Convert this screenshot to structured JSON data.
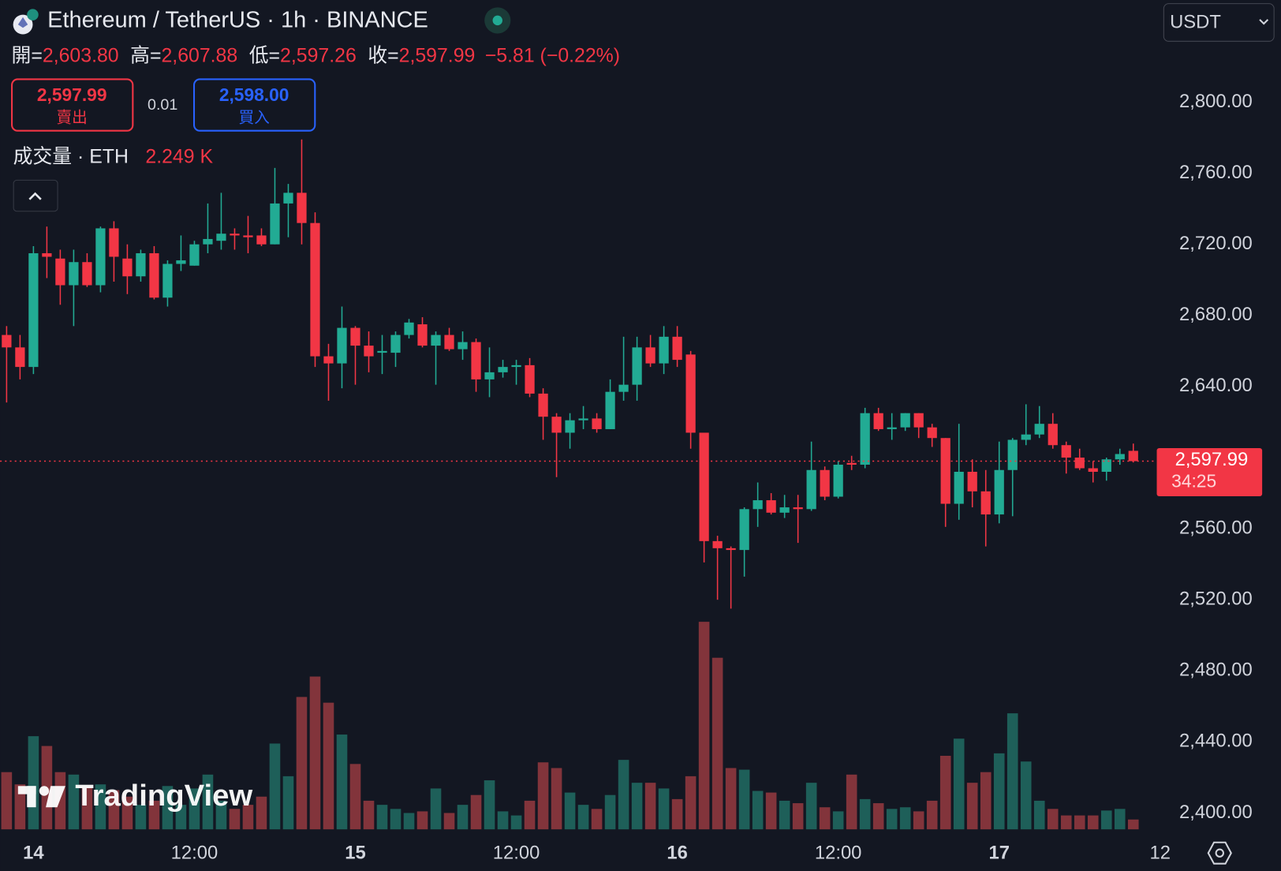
{
  "chart_data": {
    "type": "candlestick",
    "title": "Ethereum / TetherUS · 1h · BINANCE",
    "currency": "USDT",
    "ohlc": [
      {
        "label": "開=",
        "value": "2,603.80"
      },
      {
        "label": "高=",
        "value": "2,607.88"
      },
      {
        "label": "低=",
        "value": "2,597.26"
      },
      {
        "label": "收=",
        "value": "2,597.99"
      }
    ],
    "change": "−5.81 (−0.22%)",
    "sell_price": "2,597.99",
    "sell_label": "賣出",
    "spread": "0.01",
    "buy_price": "2,598.00",
    "buy_label": "買入",
    "volume_title": "成交量 · ETH",
    "volume_readout": "2.249 K",
    "last_price_label": "2,597.99",
    "countdown": "34:25",
    "watermark": "TradingView",
    "up_color": "#22ab94",
    "down_color": "#f23645",
    "volume_up_color": "#1e5f59",
    "volume_down_color": "#82343b",
    "open": [
      2669,
      2662,
      2651,
      2715,
      2712,
      2697,
      2710,
      2697,
      2729,
      2712,
      2702,
      2715,
      2690,
      2709,
      2708,
      2720,
      2722,
      2726,
      2725,
      2725,
      2720,
      2743,
      2749,
      2732,
      2657,
      2653,
      2673,
      2663,
      2659,
      2659,
      2669,
      2675,
      2663,
      2669,
      2661,
      2665,
      2644,
      2648,
      2651,
      2652,
      2636,
      2623,
      2614,
      2621,
      2622,
      2616,
      2637,
      2641,
      2662,
      2653,
      2668,
      2658,
      2614,
      2553,
      2549,
      2548,
      2571,
      2576,
      2569,
      2572,
      2571,
      2593,
      2578,
      2597,
      2596,
      2625,
      2616,
      2617,
      2625,
      2617,
      2611,
      2574,
      2592,
      2581,
      2568,
      2593,
      2610,
      2613,
      2619,
      2607,
      2600,
      2594,
      2592,
      2599,
      2603.8
    ],
    "high": [
      2674,
      2669,
      2719,
      2730,
      2717,
      2717,
      2715,
      2730,
      2733,
      2720,
      2717,
      2719,
      2711,
      2725,
      2722,
      2743,
      2749,
      2729,
      2736,
      2729,
      2763,
      2754,
      2779,
      2738,
      2664,
      2685,
      2674,
      2671,
      2669,
      2671,
      2678,
      2679,
      2671,
      2673,
      2671,
      2667,
      2662,
      2655,
      2655,
      2656,
      2639,
      2625,
      2625,
      2629,
      2625,
      2644,
      2668,
      2668,
      2669,
      2674,
      2674,
      2660,
      2614,
      2556,
      2550,
      2572,
      2586,
      2580,
      2579,
      2579,
      2609,
      2595,
      2598,
      2601,
      2628,
      2628,
      2625,
      2625,
      2625,
      2619,
      2611,
      2619,
      2599,
      2593,
      2609,
      2611,
      2630,
      2629,
      2625,
      2609,
      2605,
      2598,
      2600,
      2605,
      2607.88
    ],
    "low": [
      2631,
      2644,
      2647,
      2701,
      2686,
      2674,
      2696,
      2693,
      2699,
      2692,
      2699,
      2689,
      2685,
      2705,
      2708,
      2715,
      2717,
      2717,
      2715,
      2719,
      2720,
      2724,
      2720,
      2651,
      2632,
      2639,
      2641,
      2648,
      2647,
      2651,
      2667,
      2662,
      2641,
      2660,
      2655,
      2637,
      2634,
      2645,
      2641,
      2634,
      2610,
      2589,
      2605,
      2616,
      2614,
      2616,
      2632,
      2632,
      2651,
      2647,
      2651,
      2605,
      2541,
      2520,
      2515,
      2533,
      2561,
      2568,
      2566,
      2552,
      2570,
      2576,
      2577,
      2593,
      2594,
      2615,
      2610,
      2615,
      2611,
      2606,
      2561,
      2565,
      2572,
      2550,
      2563,
      2567,
      2607,
      2611,
      2605,
      2591,
      2593,
      2586,
      2587,
      2596,
      2597.26
    ],
    "close": [
      2662,
      2651,
      2715,
      2713,
      2697,
      2710,
      2697,
      2729,
      2713,
      2702,
      2715,
      2690,
      2709,
      2711,
      2720,
      2723,
      2726,
      2725,
      2724,
      2720,
      2743,
      2749,
      2732,
      2657,
      2653,
      2673,
      2663,
      2657,
      2660,
      2669,
      2676,
      2663,
      2669,
      2661,
      2665,
      2644,
      2648,
      2651,
      2652,
      2636,
      2623,
      2614,
      2621,
      2622,
      2616,
      2637,
      2641,
      2662,
      2653,
      2668,
      2655,
      2614,
      2553,
      2549,
      2548,
      2571,
      2576,
      2569,
      2572,
      2571,
      2593,
      2578,
      2596,
      2596,
      2625,
      2616,
      2617,
      2625,
      2617,
      2611,
      2574,
      2592,
      2581,
      2568,
      2593,
      2610,
      2613,
      2619,
      2607,
      2600,
      2594,
      2592,
      2599,
      2602,
      2597.99
    ],
    "volume": [
      13090,
      10285,
      21318,
      19074,
      13090,
      12529,
      9724,
      10285,
      8976,
      7480,
      5610,
      6545,
      9911,
      5610,
      9350,
      12529,
      6545,
      4675,
      5610,
      7480,
      19635,
      12155,
      30294,
      34969,
      28985,
      21692,
      14960,
      6545,
      5610,
      4675,
      3740,
      4114,
      9350,
      3740,
      5610,
      7854,
      11220,
      4114,
      3179,
      6545,
      15334,
      14025,
      8415,
      5610,
      4675,
      7854,
      15895,
      10659,
      10659,
      9350,
      6919,
      12155,
      47498,
      39270,
      14025,
      13651,
      8789,
      8415,
      6545,
      5984,
      10659,
      5049,
      4114,
      12529,
      6919,
      5984,
      4675,
      5049,
      4114,
      6545,
      16830,
      20757,
      10659,
      13090,
      17391,
      26554,
      15521,
      6545,
      4675,
      3179,
      3179,
      3179,
      4301,
      4675,
      2249
    ],
    "ylim": [
      2390.8,
      2857.5
    ],
    "yticks": [
      {
        "value": 2800,
        "label": "2,800.00"
      },
      {
        "value": 2760,
        "label": "2,760.00"
      },
      {
        "value": 2720,
        "label": "2,720.00"
      },
      {
        "value": 2680,
        "label": "2,680.00"
      },
      {
        "value": 2640,
        "label": "2,640.00"
      },
      {
        "value": 2600,
        "label": "2,600.00"
      },
      {
        "value": 2560,
        "label": "2,560.00"
      },
      {
        "value": 2520,
        "label": "2,520.00"
      },
      {
        "value": 2480,
        "label": "2,480.00"
      },
      {
        "value": 2440,
        "label": "2,440.00"
      },
      {
        "value": 2400,
        "label": "2,400.00"
      }
    ],
    "xlim": [
      -0.49,
      85.69
    ],
    "xticks": [
      {
        "value": 2,
        "label": "14"
      },
      {
        "value": 14,
        "label": "12:00"
      },
      {
        "value": 26,
        "label": "15"
      },
      {
        "value": 38,
        "label": "12:00"
      },
      {
        "value": 50,
        "label": "16"
      },
      {
        "value": 62,
        "label": "12:00"
      },
      {
        "value": 74,
        "label": "17"
      },
      {
        "value": 86,
        "label": "12"
      }
    ]
  }
}
